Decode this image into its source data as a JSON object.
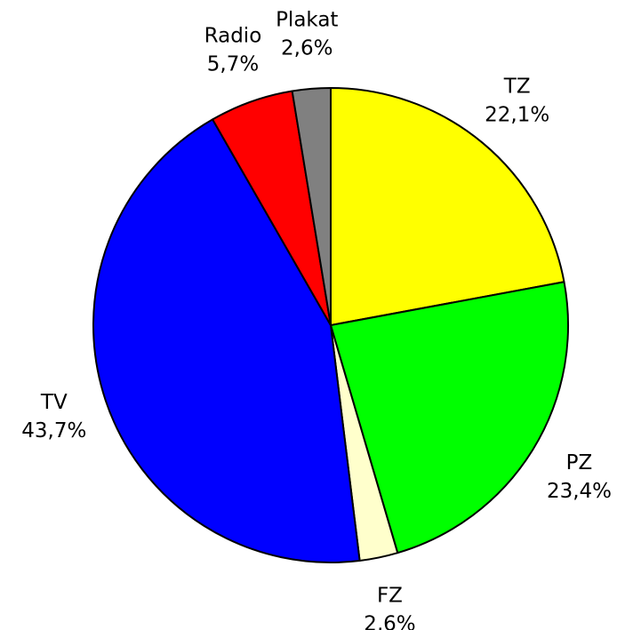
{
  "chart_data": {
    "type": "pie",
    "categories": [
      "TZ",
      "PZ",
      "FZ",
      "TV",
      "Radio",
      "Plakat"
    ],
    "values": [
      22.1,
      23.4,
      2.6,
      43.7,
      5.7,
      2.6
    ],
    "value_labels": [
      "22,1%",
      "23,4%",
      "2,6%",
      "43,7%",
      "5,7%",
      "2,6%"
    ],
    "colors": [
      "#ffff00",
      "#00ff00",
      "#ffffcc",
      "#0000ff",
      "#ff0000",
      "#808080"
    ]
  }
}
